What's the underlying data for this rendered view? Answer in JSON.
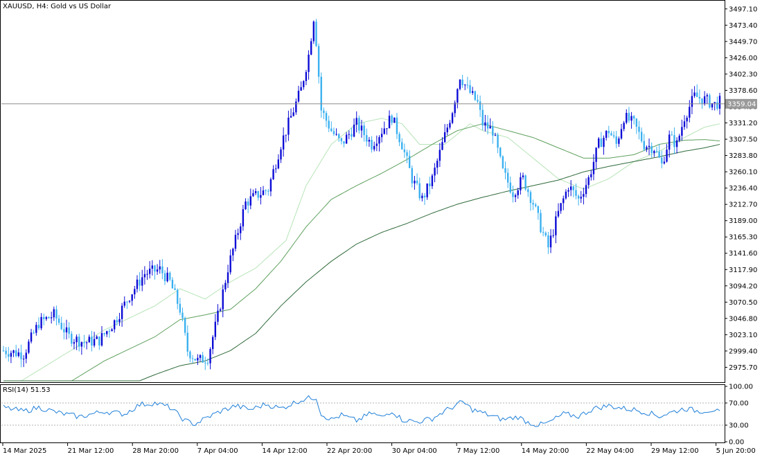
{
  "chart_data": [
    {
      "type": "candlestick",
      "title": "XAUUSD, H4:  Gold vs US Dollar",
      "current_price_label": "3359.04",
      "y_ticks": [
        "3497.10",
        "3473.40",
        "3449.70",
        "3426.00",
        "3402.30",
        "3378.60",
        "3354.90",
        "3331.20",
        "3307.50",
        "3283.80",
        "3260.10",
        "3236.40",
        "3212.70",
        "3189.00",
        "3165.30",
        "3141.60",
        "3117.90",
        "3094.20",
        "3070.50",
        "3046.80",
        "3023.10",
        "2999.40",
        "2975.70"
      ],
      "ylim": [
        2956,
        3506
      ],
      "x_ticks": [
        "14 Mar 2025",
        "21 Mar 12:00",
        "28 Mar 20:00",
        "7 Apr 04:00",
        "14 Apr 12:00",
        "22 Apr 20:00",
        "30 Apr 04:00",
        "7 May 12:00",
        "14 May 20:00",
        "22 May 04:00",
        "29 May 12:00",
        "5 Jun 20:00"
      ],
      "close_anchors": [
        [
          0,
          3000
        ],
        [
          8,
          2995
        ],
        [
          14,
          3040
        ],
        [
          20,
          3052
        ],
        [
          26,
          3020
        ],
        [
          32,
          3012
        ],
        [
          38,
          3015
        ],
        [
          44,
          3042
        ],
        [
          50,
          3080
        ],
        [
          56,
          3112
        ],
        [
          62,
          3118
        ],
        [
          66,
          3100
        ],
        [
          70,
          3060
        ],
        [
          73,
          3000
        ],
        [
          77,
          2985
        ],
        [
          81,
          2990
        ],
        [
          85,
          3050
        ],
        [
          89,
          3120
        ],
        [
          92,
          3160
        ],
        [
          96,
          3215
        ],
        [
          100,
          3225
        ],
        [
          105,
          3235
        ],
        [
          110,
          3300
        ],
        [
          114,
          3340
        ],
        [
          118,
          3380
        ],
        [
          121,
          3430
        ],
        [
          123,
          3485
        ],
        [
          124,
          3450
        ],
        [
          126,
          3350
        ],
        [
          130,
          3320
        ],
        [
          134,
          3300
        ],
        [
          140,
          3330
        ],
        [
          146,
          3300
        ],
        [
          150,
          3320
        ],
        [
          154,
          3340
        ],
        [
          158,
          3300
        ],
        [
          162,
          3250
        ],
        [
          166,
          3220
        ],
        [
          170,
          3250
        ],
        [
          174,
          3300
        ],
        [
          178,
          3350
        ],
        [
          181,
          3400
        ],
        [
          184,
          3380
        ],
        [
          188,
          3360
        ],
        [
          190,
          3330
        ],
        [
          194,
          3320
        ],
        [
          198,
          3260
        ],
        [
          202,
          3230
        ],
        [
          206,
          3250
        ],
        [
          210,
          3215
        ],
        [
          213,
          3180
        ],
        [
          216,
          3150
        ],
        [
          220,
          3200
        ],
        [
          224,
          3240
        ],
        [
          228,
          3220
        ],
        [
          232,
          3250
        ],
        [
          236,
          3300
        ],
        [
          240,
          3320
        ],
        [
          243,
          3300
        ],
        [
          246,
          3340
        ],
        [
          250,
          3330
        ],
        [
          254,
          3300
        ],
        [
          258,
          3295
        ],
        [
          261,
          3270
        ],
        [
          264,
          3310
        ],
        [
          267,
          3300
        ],
        [
          270,
          3340
        ],
        [
          274,
          3370
        ],
        [
          278,
          3365
        ],
        [
          282,
          3358
        ],
        [
          284,
          3362
        ]
      ],
      "moving_averages": [
        {
          "period": 20,
          "color": "#b7e4b7",
          "points": [
            [
              0,
              2940
            ],
            [
              20,
              2985
            ],
            [
              40,
              3030
            ],
            [
              60,
              3065
            ],
            [
              70,
              3090
            ],
            [
              80,
              3075
            ],
            [
              90,
              3100
            ],
            [
              100,
              3120
            ],
            [
              112,
              3160
            ],
            [
              120,
              3240
            ],
            [
              130,
              3300
            ],
            [
              140,
              3330
            ],
            [
              150,
              3338
            ],
            [
              158,
              3330
            ],
            [
              165,
              3300
            ],
            [
              175,
              3300
            ],
            [
              185,
              3330
            ],
            [
              190,
              3320
            ],
            [
              200,
              3310
            ],
            [
              210,
              3280
            ],
            [
              220,
              3250
            ],
            [
              230,
              3235
            ],
            [
              240,
              3250
            ],
            [
              250,
              3275
            ],
            [
              260,
              3290
            ],
            [
              270,
              3310
            ],
            [
              278,
              3325
            ],
            [
              284,
              3330
            ]
          ]
        },
        {
          "period": 50,
          "color": "#5ea05e",
          "points": [
            [
              0,
              2900
            ],
            [
              20,
              2940
            ],
            [
              40,
              2985
            ],
            [
              60,
              3020
            ],
            [
              70,
              3045
            ],
            [
              80,
              3052
            ],
            [
              90,
              3060
            ],
            [
              100,
              3090
            ],
            [
              110,
              3130
            ],
            [
              120,
              3180
            ],
            [
              130,
              3220
            ],
            [
              140,
              3240
            ],
            [
              150,
              3258
            ],
            [
              160,
              3278
            ],
            [
              170,
              3300
            ],
            [
              180,
              3320
            ],
            [
              190,
              3330
            ],
            [
              200,
              3320
            ],
            [
              210,
              3310
            ],
            [
              220,
              3295
            ],
            [
              230,
              3280
            ],
            [
              240,
              3280
            ],
            [
              250,
              3285
            ],
            [
              260,
              3300
            ],
            [
              270,
              3306
            ],
            [
              278,
              3307
            ],
            [
              284,
              3305
            ]
          ]
        },
        {
          "period": 100,
          "color": "#2f6a3a",
          "points": [
            [
              0,
              2860
            ],
            [
              20,
              2895
            ],
            [
              40,
              2935
            ],
            [
              60,
              2965
            ],
            [
              70,
              2978
            ],
            [
              80,
              2985
            ],
            [
              90,
              3000
            ],
            [
              100,
              3025
            ],
            [
              110,
              3065
            ],
            [
              120,
              3100
            ],
            [
              130,
              3130
            ],
            [
              140,
              3155
            ],
            [
              150,
              3172
            ],
            [
              160,
              3185
            ],
            [
              170,
              3200
            ],
            [
              180,
              3213
            ],
            [
              190,
              3223
            ],
            [
              200,
              3232
            ],
            [
              210,
              3240
            ],
            [
              220,
              3248
            ],
            [
              230,
              3260
            ],
            [
              240,
              3268
            ],
            [
              250,
              3275
            ],
            [
              260,
              3282
            ],
            [
              270,
              3290
            ],
            [
              278,
              3295
            ],
            [
              284,
              3300
            ]
          ]
        }
      ],
      "current_price": 3359.04,
      "gridlines": false
    },
    {
      "type": "line",
      "title": "RSI(14) 51.53",
      "y_ticks": [
        "100.00",
        "70.00",
        "30.00",
        "0.00"
      ],
      "ylim": [
        0,
        100
      ],
      "levels": [
        70,
        30
      ],
      "series": [
        {
          "color": "#1e7fd8",
          "points": [
            [
              0,
              62
            ],
            [
              8,
              55
            ],
            [
              14,
              62
            ],
            [
              22,
              52
            ],
            [
              30,
              45
            ],
            [
              40,
              55
            ],
            [
              48,
              50
            ],
            [
              54,
              67
            ],
            [
              60,
              70
            ],
            [
              66,
              62
            ],
            [
              72,
              38
            ],
            [
              76,
              32
            ],
            [
              80,
              42
            ],
            [
              86,
              55
            ],
            [
              92,
              65
            ],
            [
              98,
              58
            ],
            [
              104,
              68
            ],
            [
              110,
              60
            ],
            [
              116,
              72
            ],
            [
              120,
              78
            ],
            [
              124,
              80
            ],
            [
              126,
              50
            ],
            [
              130,
              40
            ],
            [
              134,
              48
            ],
            [
              140,
              38
            ],
            [
              146,
              52
            ],
            [
              150,
              44
            ],
            [
              154,
              56
            ],
            [
              158,
              40
            ],
            [
              164,
              36
            ],
            [
              170,
              42
            ],
            [
              176,
              58
            ],
            [
              182,
              72
            ],
            [
              186,
              58
            ],
            [
              190,
              52
            ],
            [
              194,
              46
            ],
            [
              198,
              40
            ],
            [
              204,
              45
            ],
            [
              208,
              35
            ],
            [
              212,
              30
            ],
            [
              216,
              34
            ],
            [
              222,
              50
            ],
            [
              228,
              46
            ],
            [
              234,
              60
            ],
            [
              240,
              65
            ],
            [
              246,
              60
            ],
            [
              250,
              58
            ],
            [
              256,
              52
            ],
            [
              260,
              46
            ],
            [
              264,
              52
            ],
            [
              270,
              60
            ],
            [
              276,
              55
            ],
            [
              282,
              58
            ],
            [
              284,
              51.53
            ]
          ]
        }
      ]
    }
  ]
}
